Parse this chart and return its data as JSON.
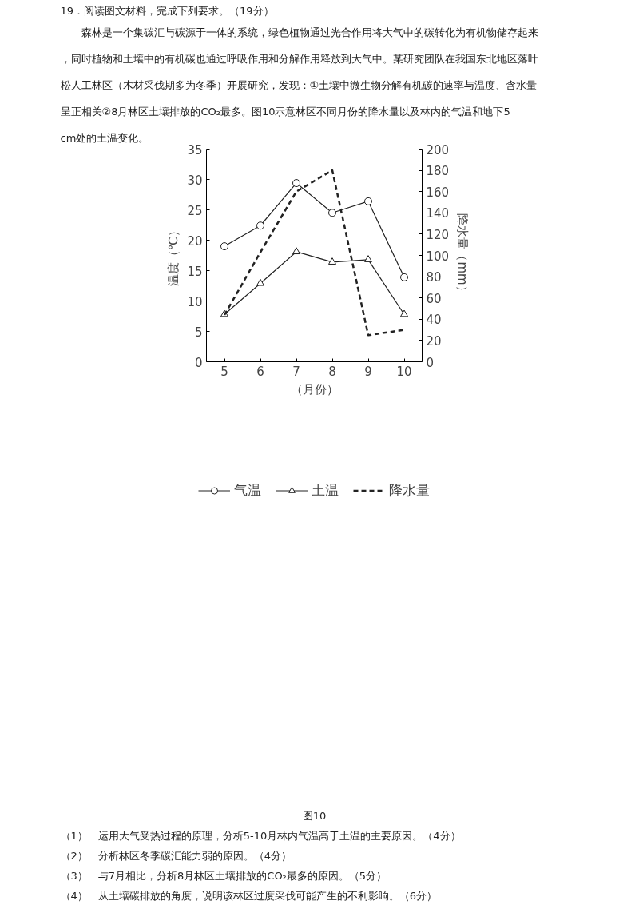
{
  "chart_data": {
    "type": "line",
    "title": "19．阅读图文材料，完成下列要求。（19分）",
    "subtitle": "森林是一个集碳汇与碳源于一体的系统，绿色植物通过光合作用将大气中的碳转化为有机物储存起来，同时植物和土壤中的有机碳也通过呼吸作用和分解作用释放到大气中。某研究团队在我国东北地区落叶松人工林区（木材采伐期多为冬季）开展研究，发现：①土壤中微生物分解有机碳的速率与温度、含水量呈正相关②8月林区土壤排放的CO₂最多。图10示意林区不同月份的降水量以及林内的气温和地下5cm处的土温变化。",
    "xlabel": "（月份）",
    "ylabel": "温度（℃）",
    "y2label": "降水量（mm）",
    "categories": [
      "5",
      "6",
      "7",
      "8",
      "9",
      "10"
    ],
    "series": [
      {
        "name": "气温",
        "color": "#222222",
        "marker": "circle",
        "line_style": "solid",
        "values": [
          19.0,
          22.4,
          29.4,
          24.5,
          26.4,
          13.9
        ]
      },
      {
        "name": "土温",
        "color": "#222222",
        "marker": "triangle",
        "line_style": "solid",
        "values": [
          7.8,
          12.9,
          18.1,
          16.4,
          16.8,
          7.8
        ]
      },
      {
        "name": "降水量",
        "color": "#222222",
        "marker": "none",
        "line_style": "dashed",
        "axis": "y2",
        "values": [
          44,
          103,
          160,
          180,
          25,
          30
        ]
      }
    ],
    "ylim": [
      0,
      35
    ],
    "yticks": [
      0,
      5,
      10,
      15,
      20,
      25,
      30,
      35
    ],
    "y2lim": [
      0,
      200
    ],
    "y2ticks": [
      0,
      20,
      40,
      60,
      80,
      100,
      120,
      140,
      160,
      180,
      200
    ],
    "grid": false,
    "legend": "bottom",
    "annotations": [
      "图10",
      "（1）　运用大气受热过程的原理，分析5-10月林内气温高于土温的主要原因。（4分）",
      "（2）　分析林区冬季碳汇能力弱的原因。（4分）",
      "（3）　与7月相比，分析8月林区土壤排放的CO₂最多的原因。（5分）",
      "（4）　从土壤碳排放的角度，说明该林区过度采伐可能产生的不利影响。（6分）"
    ]
  }
}
